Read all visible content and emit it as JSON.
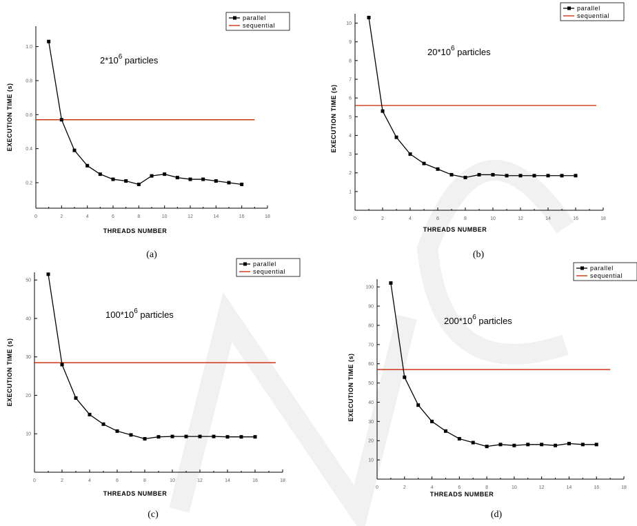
{
  "chart_data": [
    {
      "panel": "a",
      "type": "line",
      "caption": "(a)",
      "annotation": {
        "base": "2*10",
        "sup": "6",
        "rest": " particles"
      },
      "xlabel": "THREADS NUMBER",
      "ylabel": "EXECUTION TIME (s)",
      "xlim": [
        0,
        18
      ],
      "ylim": [
        0.05,
        1.12
      ],
      "xticks": [
        0,
        2,
        4,
        6,
        8,
        10,
        12,
        14,
        16,
        18
      ],
      "yticks": [
        0.2,
        0.4,
        0.6,
        0.8,
        1.0
      ],
      "ytick_labels": [
        "0.2",
        "0.4",
        "0.6",
        "0.8",
        "1.0"
      ],
      "legend": {
        "position": "top-right",
        "entries": [
          "parallel",
          "sequential"
        ]
      },
      "series": [
        {
          "name": "parallel",
          "x": [
            1,
            2,
            3,
            4,
            5,
            6,
            7,
            8,
            9,
            10,
            11,
            12,
            13,
            14,
            15,
            16
          ],
          "values": [
            1.03,
            0.57,
            0.39,
            0.3,
            0.25,
            0.22,
            0.21,
            0.19,
            0.24,
            0.25,
            0.23,
            0.22,
            0.22,
            0.21,
            0.2,
            0.19
          ]
        },
        {
          "name": "sequential",
          "x": [
            0,
            17
          ],
          "values": [
            0.57,
            0.57
          ]
        }
      ]
    },
    {
      "panel": "b",
      "type": "line",
      "caption": "(b)",
      "annotation": {
        "base": "20*10",
        "sup": "6",
        "rest": " particles"
      },
      "xlabel": "THREADS NUMBER",
      "ylabel": "EXECUTION TIME (s)",
      "xlim": [
        0,
        18
      ],
      "ylim": [
        0,
        10.5
      ],
      "xticks": [
        0,
        2,
        4,
        6,
        8,
        10,
        12,
        14,
        16,
        18
      ],
      "yticks": [
        1,
        2,
        3,
        4,
        5,
        6,
        7,
        8,
        9,
        10
      ],
      "ytick_labels": [
        "1",
        "2",
        "3",
        "4",
        "5",
        "6",
        "7",
        "8",
        "9",
        "10"
      ],
      "legend": {
        "position": "top-right",
        "entries": [
          "parallel",
          "sequential"
        ]
      },
      "series": [
        {
          "name": "parallel",
          "x": [
            1,
            2,
            3,
            4,
            5,
            6,
            7,
            8,
            9,
            10,
            11,
            12,
            13,
            14,
            15,
            16
          ],
          "values": [
            10.3,
            5.3,
            3.9,
            3.0,
            2.5,
            2.2,
            1.9,
            1.75,
            1.9,
            1.9,
            1.85,
            1.85,
            1.85,
            1.85,
            1.85,
            1.85
          ]
        },
        {
          "name": "sequential",
          "x": [
            0,
            17.5
          ],
          "values": [
            5.6,
            5.6
          ]
        }
      ]
    },
    {
      "panel": "c",
      "type": "line",
      "caption": "(c)",
      "annotation": {
        "base": "100*10",
        "sup": "6",
        "rest": " particles"
      },
      "xlabel": "THREADS NUMBER",
      "ylabel": "EXECUTION TIME (s)",
      "xlim": [
        0,
        18
      ],
      "ylim": [
        0,
        52
      ],
      "xticks": [
        0,
        2,
        4,
        6,
        8,
        10,
        12,
        14,
        16,
        18
      ],
      "yticks": [
        10,
        20,
        30,
        40,
        50
      ],
      "ytick_labels": [
        "10",
        "20",
        "30",
        "40",
        "50"
      ],
      "legend": {
        "position": "top-right",
        "entries": [
          "parallel",
          "sequential"
        ]
      },
      "series": [
        {
          "name": "parallel",
          "x": [
            1,
            2,
            3,
            4,
            5,
            6,
            7,
            8,
            9,
            10,
            11,
            12,
            13,
            14,
            15,
            16
          ],
          "values": [
            51.5,
            28,
            19.3,
            15,
            12.5,
            10.7,
            9.7,
            8.7,
            9.2,
            9.3,
            9.3,
            9.3,
            9.3,
            9.2,
            9.2,
            9.2
          ]
        },
        {
          "name": "sequential",
          "x": [
            0,
            17.5
          ],
          "values": [
            28.5,
            28.5
          ]
        }
      ]
    },
    {
      "panel": "d",
      "type": "line",
      "caption": "(d)",
      "annotation": {
        "base": "200*10",
        "sup": "6",
        "rest": " particles"
      },
      "xlabel": "THREADS NUMBER",
      "ylabel": "EXECUTION TIME (s)",
      "xlim": [
        0,
        18
      ],
      "ylim": [
        0,
        104
      ],
      "xticks": [
        0,
        2,
        4,
        6,
        8,
        10,
        12,
        14,
        16,
        18
      ],
      "yticks": [
        10,
        20,
        30,
        40,
        50,
        60,
        70,
        80,
        90,
        100
      ],
      "ytick_labels": [
        "10",
        "20",
        "30",
        "40",
        "50",
        "60",
        "70",
        "80",
        "90",
        "100"
      ],
      "legend": {
        "position": "top-right",
        "entries": [
          "parallel",
          "sequential"
        ]
      },
      "series": [
        {
          "name": "parallel",
          "x": [
            1,
            2,
            3,
            4,
            5,
            6,
            7,
            8,
            9,
            10,
            11,
            12,
            13,
            14,
            15,
            16
          ],
          "values": [
            102,
            53,
            38.5,
            30,
            25,
            21,
            19,
            17,
            18,
            17.5,
            18,
            18,
            17.5,
            18.5,
            18,
            18
          ]
        },
        {
          "name": "sequential",
          "x": [
            0,
            17
          ],
          "values": [
            57,
            57
          ]
        }
      ]
    }
  ],
  "colors": {
    "parallel": "#000000",
    "sequential": "#cc2200",
    "axis": "#000000",
    "tick_label": "#666666"
  }
}
